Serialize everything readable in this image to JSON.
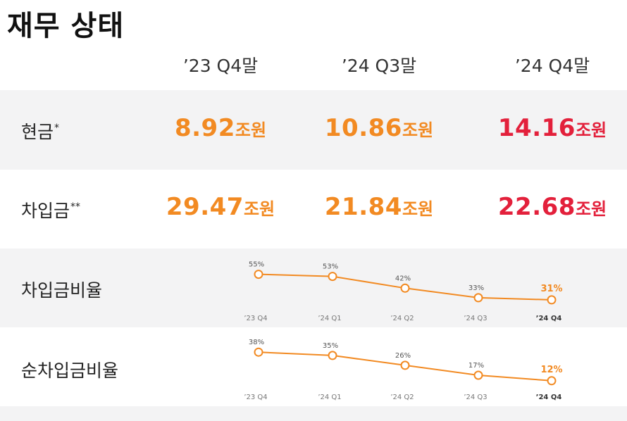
{
  "title": "재무 상태",
  "columns": [
    "’23 Q4말",
    "’24 Q3말",
    "’24 Q4말"
  ],
  "rows": {
    "cash": {
      "label": "현금",
      "mark": "*",
      "values": [
        "8.92",
        "10.86",
        "14.16"
      ],
      "unit": "조원"
    },
    "borrowings": {
      "label": "차입금",
      "mark": "**",
      "values": [
        "29.47",
        "21.84",
        "22.68"
      ],
      "unit": "조원"
    }
  },
  "colors": {
    "accent": "#f28a22",
    "highlight": "#e3203b",
    "band": "#f3f3f4"
  },
  "chart_data": [
    {
      "type": "line",
      "title": "차입금비율",
      "categories": [
        "’23 Q4",
        "’24 Q1",
        "’24 Q2",
        "’24 Q3",
        "’24 Q4"
      ],
      "values": [
        55,
        53,
        42,
        33,
        31
      ],
      "labels": [
        "55%",
        "53%",
        "42%",
        "33%",
        "31%"
      ],
      "ylim": [
        25,
        60
      ]
    },
    {
      "type": "line",
      "title": "순차입금비율",
      "categories": [
        "’23 Q4",
        "’24 Q1",
        "’24 Q2",
        "’24 Q3",
        "’24 Q4"
      ],
      "values": [
        38,
        35,
        26,
        17,
        12
      ],
      "labels": [
        "38%",
        "35%",
        "26%",
        "17%",
        "12%"
      ],
      "ylim": [
        8,
        42
      ]
    }
  ]
}
